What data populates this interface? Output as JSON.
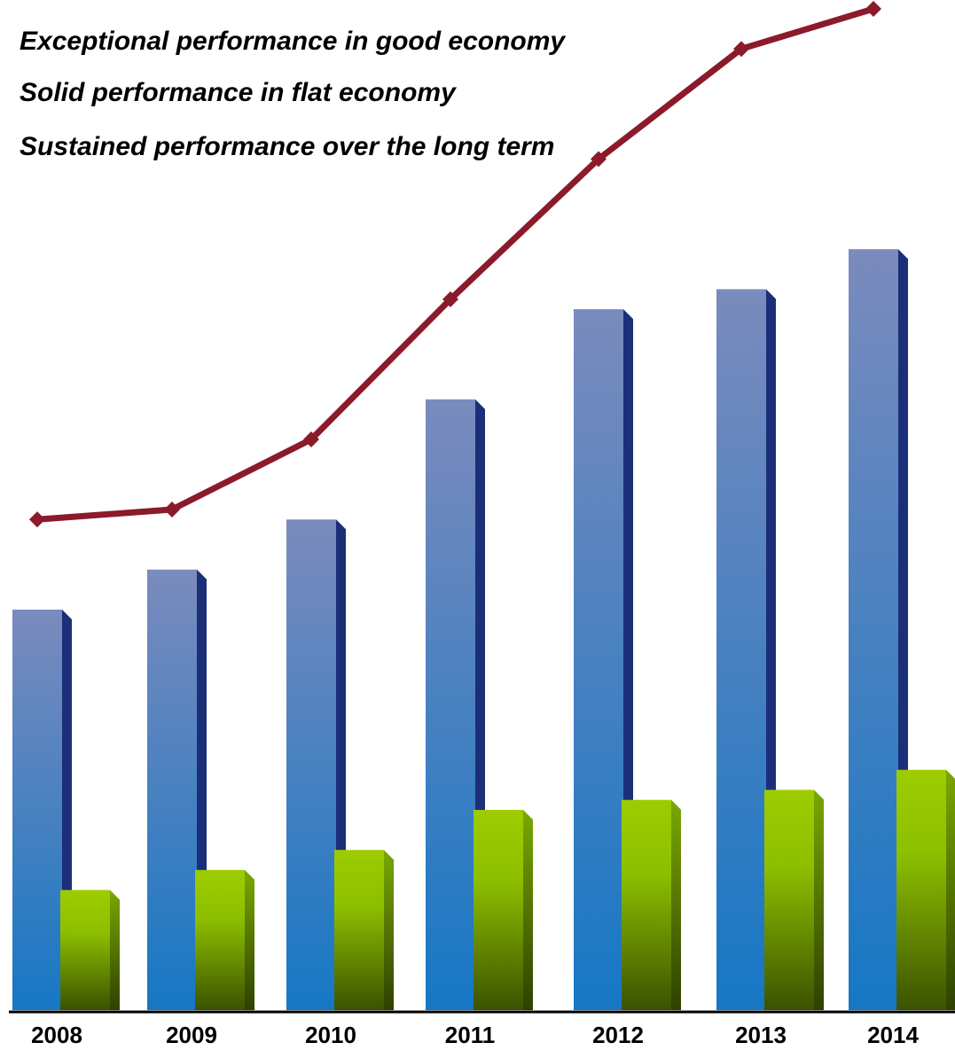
{
  "chart_data": {
    "type": "bar",
    "title": "",
    "xlabel": "",
    "ylabel": "",
    "categories": [
      "2008",
      "2009",
      "2010",
      "2011",
      "2012",
      "2013",
      "2014"
    ],
    "ylim": [
      0,
      100
    ],
    "grid": false,
    "series": [
      {
        "type": "bar",
        "color": "#4a7fc4",
        "values": [
          40,
          44,
          49,
          61,
          70,
          72,
          76
        ]
      },
      {
        "type": "bar",
        "color": "#8dc400",
        "values": [
          12,
          14,
          16,
          20,
          21,
          22,
          24
        ]
      },
      {
        "type": "line",
        "color": "#8b1a2b",
        "values": [
          49,
          50,
          57,
          71,
          85,
          96,
          100
        ]
      }
    ],
    "annotations": [
      "Exceptional performance in good economy",
      "Solid performance in flat economy",
      "Sustained performance over the long term"
    ]
  }
}
